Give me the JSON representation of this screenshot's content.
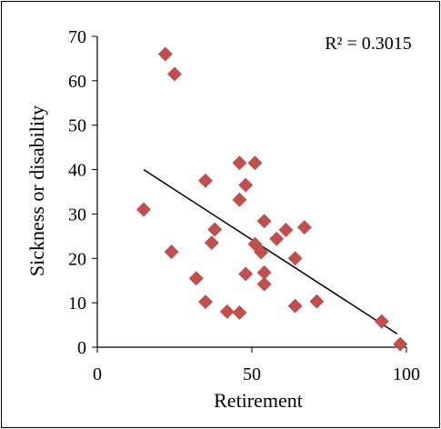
{
  "chart_data": {
    "type": "scatter",
    "title": "",
    "xlabel": "Retirement",
    "ylabel": "Sickness or disability",
    "xlim": [
      0,
      100
    ],
    "ylim": [
      0,
      70
    ],
    "x_ticks": [
      "0",
      "50",
      "100"
    ],
    "y_ticks": [
      "0",
      "10",
      "20",
      "30",
      "40",
      "50",
      "60",
      "70"
    ],
    "grid": false,
    "legend": "none",
    "annotation": "R² = 0.3015",
    "marker": "diamond",
    "marker_color": "#c0504d",
    "trendline": {
      "type": "linear",
      "x": [
        15,
        97
      ],
      "y": [
        40,
        3
      ],
      "color": "#000000"
    },
    "points": [
      {
        "x": 22,
        "y": 66
      },
      {
        "x": 25,
        "y": 61.5
      },
      {
        "x": 15,
        "y": 31
      },
      {
        "x": 24,
        "y": 21.5
      },
      {
        "x": 35,
        "y": 37.5
      },
      {
        "x": 38,
        "y": 26.5
      },
      {
        "x": 37,
        "y": 23.5
      },
      {
        "x": 32,
        "y": 15.5
      },
      {
        "x": 35,
        "y": 10.2
      },
      {
        "x": 42,
        "y": 8
      },
      {
        "x": 46,
        "y": 7.8
      },
      {
        "x": 46,
        "y": 41.5
      },
      {
        "x": 51,
        "y": 41.5
      },
      {
        "x": 48,
        "y": 36.5
      },
      {
        "x": 46,
        "y": 33.2
      },
      {
        "x": 54,
        "y": 28.4
      },
      {
        "x": 51,
        "y": 23.2
      },
      {
        "x": 53,
        "y": 21.4
      },
      {
        "x": 48,
        "y": 16.5
      },
      {
        "x": 54,
        "y": 16.8
      },
      {
        "x": 54,
        "y": 14.2
      },
      {
        "x": 58,
        "y": 24.4
      },
      {
        "x": 61,
        "y": 26.4
      },
      {
        "x": 67,
        "y": 27
      },
      {
        "x": 64,
        "y": 20
      },
      {
        "x": 64,
        "y": 9.3
      },
      {
        "x": 71,
        "y": 10.3
      },
      {
        "x": 92,
        "y": 5.8
      },
      {
        "x": 98,
        "y": 0.7
      }
    ]
  }
}
